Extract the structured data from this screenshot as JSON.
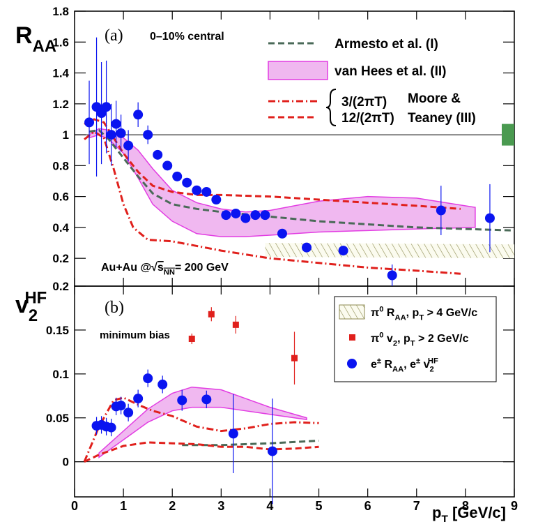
{
  "chart_data": [
    {
      "type": "scatter",
      "panel_label": "(a)",
      "annotation": "0–10% central",
      "ylabel": [
        "R",
        "AA"
      ],
      "energy_label": [
        "Au+Au @",
        "√",
        "s",
        "NN",
        "= 200 GeV"
      ],
      "group_label": [
        "Moore &",
        "Teaney (III)"
      ],
      "xlim": [
        0,
        9
      ],
      "ylim": [
        0.02,
        1.8
      ],
      "xticks": [
        0,
        1,
        2,
        3,
        4,
        5,
        6,
        7,
        8,
        9
      ],
      "yticks": [
        0.2,
        0.4,
        0.6,
        0.8,
        1,
        1.2,
        1.4,
        1.6,
        1.8
      ],
      "reference_line": 1,
      "norm_uncertainty": {
        "x": 9,
        "value": 1,
        "error": 0.07,
        "color": "#4a9a50"
      },
      "series": [
        {
          "style": "hatch",
          "color": "#8c8a50",
          "x": [
            3.9,
            9
          ],
          "lower": [
            0.21,
            0.2
          ],
          "upper": [
            0.3,
            0.29
          ]
        },
        {
          "name": "van Hees et al. (II)",
          "style": "band",
          "color": "#e23ce2",
          "fill": "#f0b8f0",
          "x": [
            0.3,
            0.5,
            0.7,
            1.0,
            1.3,
            1.6,
            2.0,
            2.5,
            3,
            3.5,
            4,
            5,
            6,
            7,
            8.2
          ],
          "lower": [
            0.98,
            1.0,
            0.97,
            0.88,
            0.72,
            0.55,
            0.44,
            0.36,
            0.34,
            0.34,
            0.35,
            0.37,
            0.38,
            0.39,
            0.4
          ],
          "upper": [
            1.0,
            1.04,
            1.03,
            0.98,
            0.9,
            0.78,
            0.64,
            0.56,
            0.52,
            0.5,
            0.51,
            0.57,
            0.6,
            0.59,
            0.53
          ]
        },
        {
          "name": "Armesto et al. (I)",
          "style": "dashed",
          "color": "#4a6a58",
          "x": [
            0.3,
            0.5,
            0.7,
            1.0,
            1.3,
            1.6,
            2.0,
            2.5,
            3,
            4,
            5,
            6,
            7,
            8,
            9
          ],
          "values": [
            1.02,
            1.03,
            0.97,
            0.85,
            0.73,
            0.62,
            0.55,
            0.52,
            0.5,
            0.47,
            0.44,
            0.42,
            0.4,
            0.39,
            0.38
          ]
        },
        {
          "name": "3/(2πT)",
          "style": "dashdot",
          "color": "#e0201c",
          "x": [
            0.2,
            0.4,
            0.6,
            0.8,
            1.0,
            1.2,
            1.5,
            2,
            3,
            4,
            5,
            6,
            7,
            7.9
          ],
          "values": [
            0.97,
            1.02,
            0.98,
            0.78,
            0.55,
            0.4,
            0.32,
            0.31,
            0.25,
            0.2,
            0.17,
            0.14,
            0.12,
            0.1
          ]
        },
        {
          "name": "12/(2πT)",
          "style": "dashed",
          "color": "#e0201c",
          "x": [
            0.2,
            0.4,
            0.6,
            0.8,
            1.0,
            1.3,
            1.6,
            2,
            2.5,
            3,
            4,
            5,
            6,
            7,
            7.9
          ],
          "values": [
            1.07,
            1.1,
            1.08,
            0.98,
            0.88,
            0.76,
            0.67,
            0.63,
            0.61,
            0.61,
            0.6,
            0.58,
            0.56,
            0.54,
            0.52
          ]
        },
        {
          "style": "points",
          "color": "#0a14f0",
          "x": [
            0.3,
            0.45,
            0.55,
            0.65,
            0.75,
            0.85,
            0.95,
            1.1,
            1.3,
            1.5,
            1.7,
            1.9,
            2.1,
            2.3,
            2.5,
            2.7,
            2.9,
            3.1,
            3.3,
            3.5,
            3.7,
            3.9,
            4.25,
            4.75,
            5.5,
            6.5,
            7.5,
            8.5
          ],
          "values": [
            1.08,
            1.18,
            1.14,
            1.18,
            1.0,
            1.07,
            1.01,
            0.93,
            1.13,
            1.0,
            0.87,
            0.8,
            0.73,
            0.69,
            0.64,
            0.63,
            0.58,
            0.48,
            0.49,
            0.46,
            0.48,
            0.48,
            0.36,
            0.27,
            0.25,
            0.09,
            0.51,
            0.46
          ],
          "errors": [
            0.27,
            0.45,
            0.33,
            0.3,
            0.2,
            0.15,
            0.12,
            0.1,
            0.08,
            0.06,
            0.03,
            0.02,
            0.02,
            0.02,
            0.02,
            0.02,
            0.02,
            0.02,
            0.02,
            0.02,
            0.02,
            0.02,
            0.03,
            0.03,
            0.03,
            0.07,
            0.16,
            0.22
          ]
        }
      ]
    },
    {
      "type": "scatter",
      "panel_label": "(b)",
      "annotation": "minimum bias",
      "ylabel": [
        "v",
        "2",
        "HF"
      ],
      "xlabel": [
        "p",
        "T",
        " [GeV/c]"
      ],
      "legend": [
        [
          "π",
          "0",
          " R",
          "AA",
          ", p",
          "T",
          " > 4 GeV/c"
        ],
        [
          "π",
          "0",
          " v",
          "2",
          ", p",
          "T",
          " > 2 GeV/c"
        ],
        [
          "e",
          "±",
          " R",
          "AA",
          ", e",
          "±",
          " v",
          "2",
          "HF"
        ]
      ],
      "xlim": [
        0,
        9
      ],
      "ylim": [
        -0.04,
        0.2
      ],
      "xticks": [
        0,
        1,
        2,
        3,
        4,
        5,
        6,
        7,
        8,
        9
      ],
      "yticks": [
        0,
        0.05,
        0.1,
        0.15,
        0.2
      ],
      "reference_line": 0,
      "series": [
        {
          "style": "band",
          "color": "#e23ce2",
          "fill": "#f0b8f0",
          "x": [
            0.5,
            1,
            1.5,
            2,
            2.4,
            3,
            3.5,
            4,
            4.75
          ],
          "lower": [
            0.005,
            0.025,
            0.045,
            0.058,
            0.062,
            0.062,
            0.058,
            0.054,
            0.048
          ],
          "upper": [
            0.01,
            0.035,
            0.06,
            0.078,
            0.085,
            0.082,
            0.072,
            0.062,
            0.05
          ]
        },
        {
          "style": "dashed",
          "color": "#4a6a58",
          "x": [
            2.2,
            3,
            4,
            5
          ],
          "values": [
            0.019,
            0.019,
            0.021,
            0.024
          ]
        },
        {
          "style": "dashdot",
          "color": "#e0201c",
          "x": [
            0.2,
            0.5,
            0.8,
            1.0,
            1.3,
            1.6,
            2,
            2.5,
            3,
            3.5,
            4,
            4.5,
            5
          ],
          "values": [
            0,
            0.04,
            0.07,
            0.073,
            0.065,
            0.058,
            0.052,
            0.04,
            0.035,
            0.038,
            0.043,
            0.045,
            0.044
          ]
        },
        {
          "style": "dashed",
          "color": "#e0201c",
          "x": [
            0.2,
            0.5,
            1,
            1.5,
            2,
            2.5,
            3,
            3.5,
            4,
            4.5,
            5
          ],
          "values": [
            0,
            0.008,
            0.018,
            0.022,
            0.021,
            0.02,
            0.017,
            0.017,
            0.014,
            0.015,
            0.017
          ]
        },
        {
          "style": "squares",
          "color": "#e0201c",
          "x": [
            2.4,
            2.8,
            3.3,
            4.5
          ],
          "values": [
            0.14,
            0.168,
            0.156,
            0.118
          ],
          "errors": [
            0.006,
            0.008,
            0.01,
            0.03
          ]
        },
        {
          "style": "points",
          "color": "#0a14f0",
          "x": [
            0.45,
            0.55,
            0.65,
            0.75,
            0.85,
            0.95,
            1.1,
            1.3,
            1.5,
            1.8,
            2.2,
            2.7,
            3.25,
            4.05
          ],
          "values": [
            0.041,
            0.042,
            0.04,
            0.039,
            0.063,
            0.064,
            0.056,
            0.072,
            0.095,
            0.088,
            0.07,
            0.071,
            0.032,
            0.012
          ],
          "errors": [
            0.01,
            0.01,
            0.01,
            0.01,
            0.01,
            0.01,
            0.01,
            0.01,
            0.01,
            0.01,
            0.012,
            0.01,
            0.045,
            0.06
          ]
        }
      ]
    }
  ]
}
